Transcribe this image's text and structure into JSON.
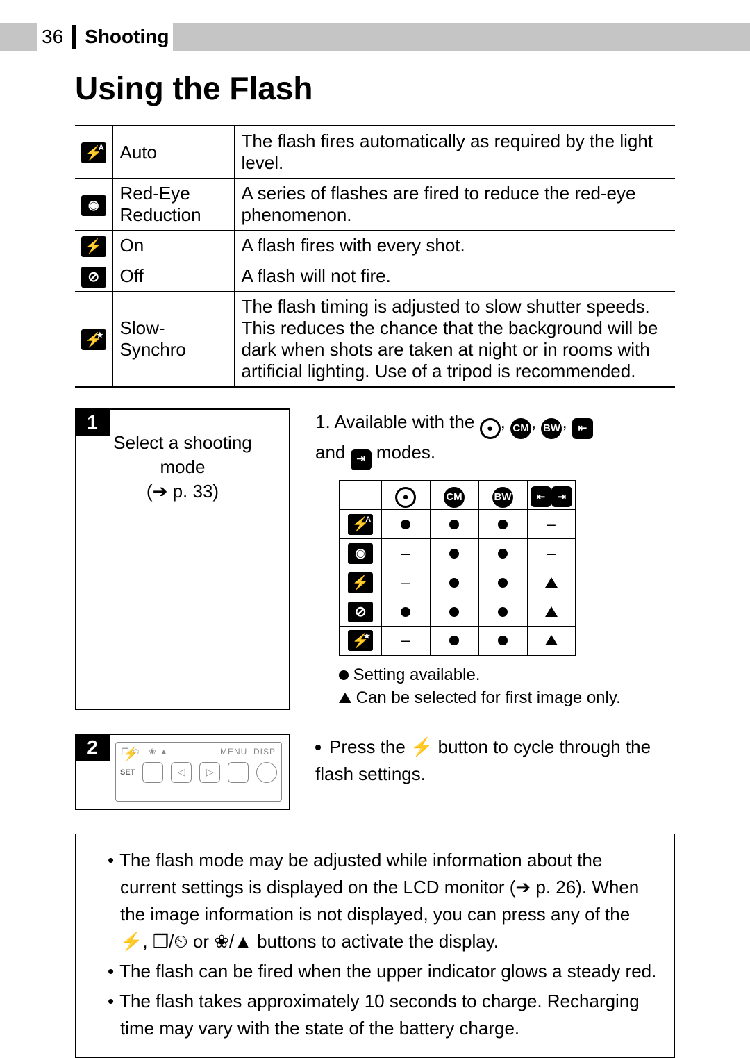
{
  "header": {
    "page": "36",
    "section": "Shooting"
  },
  "title": "Using the Flash",
  "modes": [
    {
      "icon": "flash-auto",
      "name": "Auto",
      "desc": "The flash fires automatically as required by the light level."
    },
    {
      "icon": "red-eye",
      "name": "Red-Eye Reduction",
      "desc": "A series of flashes are fired to reduce the red-eye phenomenon."
    },
    {
      "icon": "flash-on",
      "name": "On",
      "desc": "A flash fires with every shot."
    },
    {
      "icon": "flash-off",
      "name": "Off",
      "desc": "A flash will not fire."
    },
    {
      "icon": "slow-synchro",
      "name": "Slow-Synchro",
      "desc": "The flash timing is adjusted to slow shutter speeds. This reduces the chance that the background will be dark when shots are taken at night or in rooms with artificial lighting. Use of a tripod is recommended."
    }
  ],
  "step1": {
    "num": "1",
    "line1": "Select a shooting mode",
    "line2": "(➔ p. 33)",
    "available_prefix": "1. Available with the ",
    "available_suffix": "  modes.",
    "and_word": "and "
  },
  "matrix": {
    "cols": [
      "camera",
      "cm",
      "bw",
      "stitch"
    ],
    "rows": [
      {
        "mode": "flash-auto",
        "cells": [
          "dot",
          "dot",
          "dot",
          "dash"
        ]
      },
      {
        "mode": "red-eye",
        "cells": [
          "dash",
          "dot",
          "dot",
          "dash"
        ]
      },
      {
        "mode": "flash-on",
        "cells": [
          "dash",
          "dot",
          "dot",
          "tri"
        ]
      },
      {
        "mode": "flash-off",
        "cells": [
          "dot",
          "dot",
          "dot",
          "tri"
        ]
      },
      {
        "mode": "slow-synchro",
        "cells": [
          "dash",
          "dot",
          "dot",
          "tri"
        ]
      }
    ]
  },
  "legend": {
    "dot": "Setting available.",
    "tri": "Can be selected for first image only."
  },
  "step2": {
    "num": "2",
    "text_before": "Press the ",
    "text_after": " button to cycle through the flash settings.",
    "cam_labels": {
      "menu": "MENU",
      "disp": "DISP",
      "set": "SET"
    }
  },
  "notes": [
    "The flash mode may be adjusted while information about the current settings is displayed on the LCD monitor (➔ p. 26). When the image information is not displayed, you can press any of the ⚡, ❐/⏲ or ❀/▲ buttons to activate the display.",
    "The flash can be fired when the upper indicator glows a steady red.",
    "The flash takes approximately 10 seconds to charge. Recharging time may vary with the state of the battery charge."
  ]
}
